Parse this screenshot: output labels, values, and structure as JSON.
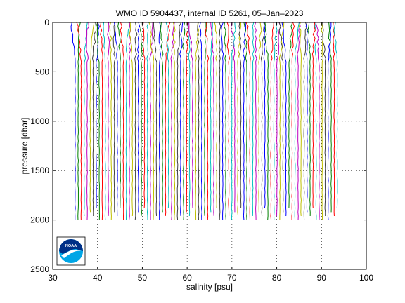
{
  "chart_data": {
    "type": "line",
    "title": "WMO ID 5904437, internal ID 5261, 05–Jan–2023",
    "xlabel": "salinity [psu]",
    "ylabel": "pressure [dbar]",
    "xlim": [
      30,
      100
    ],
    "ylim": [
      0,
      2500
    ],
    "y_reversed": true,
    "grid": true,
    "grid_style": "dotted",
    "xticks": [
      30,
      40,
      50,
      60,
      70,
      80,
      90,
      100
    ],
    "yticks": [
      0,
      500,
      1000,
      1500,
      2000,
      2500
    ],
    "profiles": {
      "description": "Stacked salinity profiles, each shown offset in salinity",
      "first_offset_salinity": 35.0,
      "last_offset_salinity": 93.5,
      "count": 88,
      "max_pressure": [
        2000,
        2000,
        2000,
        1990,
        2000,
        1950,
        1990,
        1900
      ],
      "colors": [
        "#0000ff",
        "#008000",
        "#ff0000",
        "#00bfbf",
        "#bf00bf",
        "#bfbf00",
        "#404040"
      ]
    },
    "logo": {
      "name": "NOAA",
      "colors": [
        "#003087",
        "#00a6e6",
        "#ffffff"
      ]
    }
  }
}
